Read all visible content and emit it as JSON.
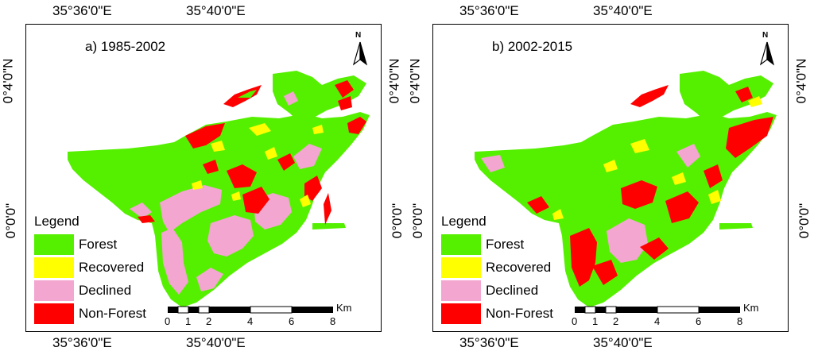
{
  "colors": {
    "forest": "#55f000",
    "recovered": "#ffff00",
    "declined": "#f2a6d0",
    "non_forest": "#ff0000"
  },
  "coordinates": {
    "top_left": "35°36'0\"E",
    "top_right": "35°40'0\"E",
    "bottom_left": "35°36'0\"E",
    "bottom_right": "35°40'0\"E",
    "left_upper": "0°4'0\"N",
    "left_lower": "0°0'0\"",
    "right_upper": "0°4'0\"N",
    "right_lower": "0°0'0\""
  },
  "panels": [
    {
      "title": "a) 1985-2002"
    },
    {
      "title": "b) 2002-2015"
    }
  ],
  "north_label": "N",
  "legend": {
    "title": "Legend",
    "items": [
      {
        "label": "Forest",
        "color_key": "forest"
      },
      {
        "label": "Recovered",
        "color_key": "recovered"
      },
      {
        "label": "Declined",
        "color_key": "declined"
      },
      {
        "label": "Non-Forest",
        "color_key": "non_forest"
      }
    ]
  },
  "scale_bar": {
    "unit": "Km",
    "labels": [
      "0",
      "1",
      "2",
      "4",
      "6",
      "8"
    ]
  }
}
